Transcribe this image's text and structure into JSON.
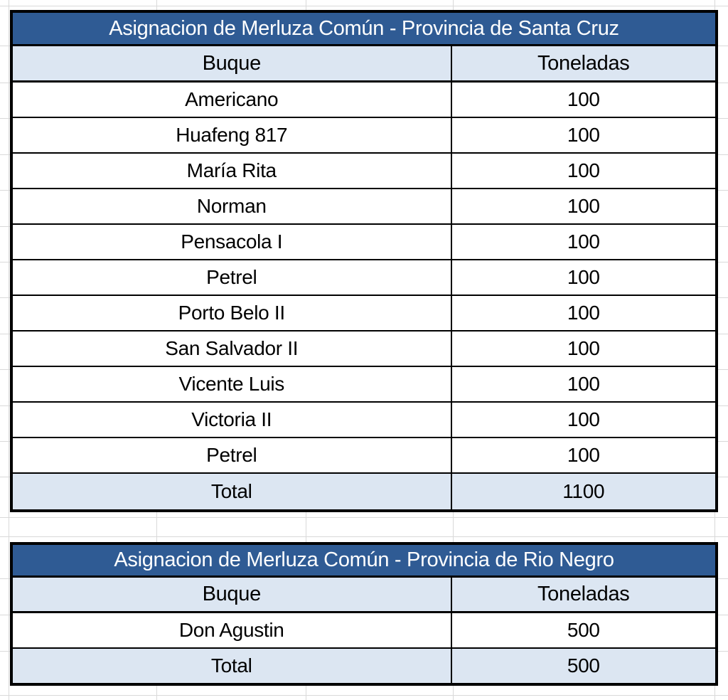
{
  "canvas": {
    "background": "#FFFFFF",
    "gridline_color": "#D9D9D9"
  },
  "styles": {
    "title_bg": "#2F5B94",
    "title_text": "#FFFFFF",
    "band_bg": "#DCE6F2",
    "cell_bg": "#FFFFFF",
    "border": "#000000",
    "text": "#000000"
  },
  "chart_data": [
    {
      "type": "table",
      "title": "Asignacion de Merluza Común - Provincia de Santa Cruz",
      "columns": [
        "Buque",
        "Toneladas"
      ],
      "rows": [
        [
          "Americano",
          "100"
        ],
        [
          "Huafeng 817",
          "100"
        ],
        [
          "María Rita",
          "100"
        ],
        [
          "Norman",
          "100"
        ],
        [
          "Pensacola I",
          "100"
        ],
        [
          "Petrel",
          "100"
        ],
        [
          "Porto Belo II",
          "100"
        ],
        [
          "San Salvador II",
          "100"
        ],
        [
          "Vicente Luis",
          "100"
        ],
        [
          "Victoria II",
          "100"
        ],
        [
          "Petrel",
          "100"
        ]
      ],
      "total_row": [
        "Total",
        "1100"
      ]
    },
    {
      "type": "table",
      "title": "Asignacion de Merluza Común - Provincia de Rio Negro",
      "columns": [
        "Buque",
        "Toneladas"
      ],
      "rows": [
        [
          "Don Agustin",
          "500"
        ]
      ],
      "total_row": [
        "Total",
        "500"
      ]
    }
  ]
}
